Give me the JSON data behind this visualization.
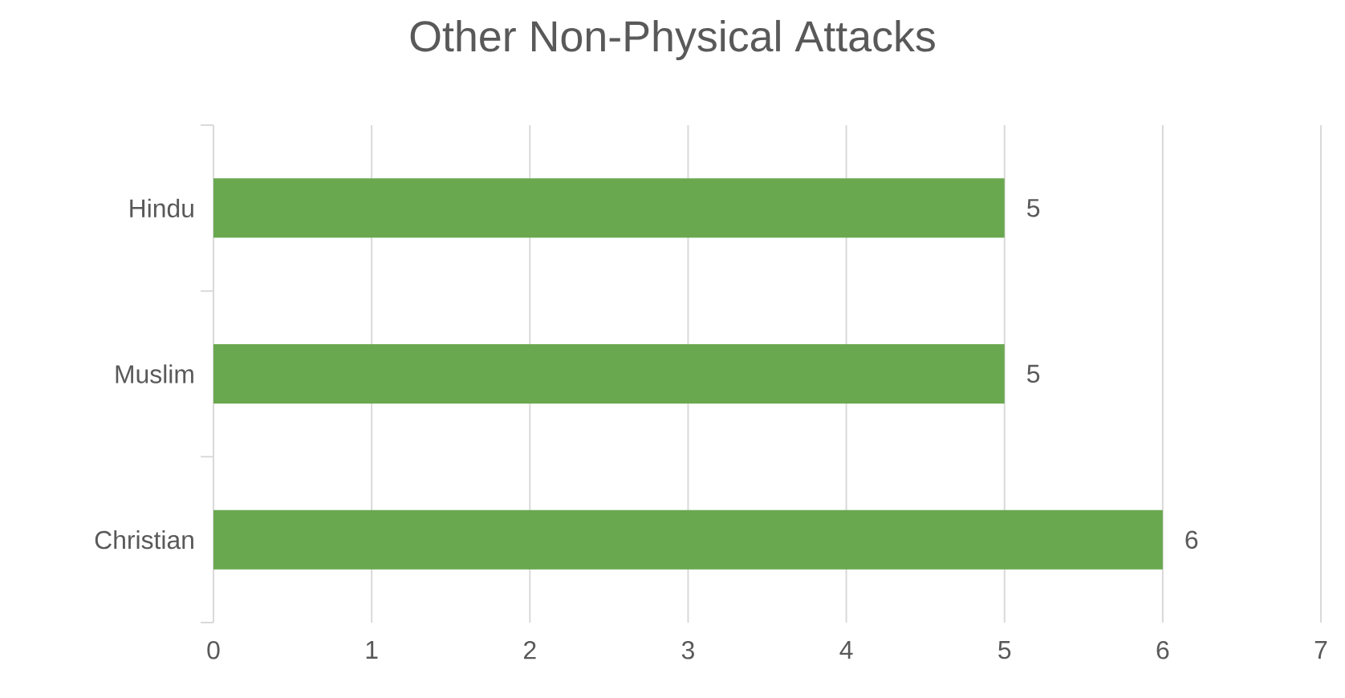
{
  "chart_data": {
    "type": "bar",
    "orientation": "horizontal",
    "title": "Other Non-Physical Attacks",
    "categories": [
      "Hindu",
      "Muslim",
      "Christian"
    ],
    "values": [
      5,
      5,
      6
    ],
    "color": "#6aa84f",
    "xlim": [
      0,
      7
    ],
    "xticks": [
      0,
      1,
      2,
      3,
      4,
      5,
      6,
      7
    ],
    "grid": "x",
    "data_labels": true
  }
}
